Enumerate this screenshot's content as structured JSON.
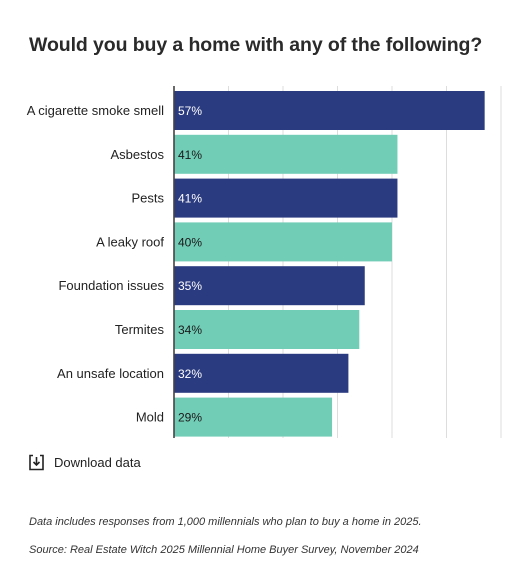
{
  "chart_data": {
    "type": "bar",
    "orientation": "horizontal",
    "title": "Would you buy a home with any of the following?",
    "categories": [
      "A cigarette smoke smell",
      "Asbestos",
      "Pests",
      "A leaky roof",
      "Foundation issues",
      "Termites",
      "An unsafe location",
      "Mold"
    ],
    "values": [
      57,
      41,
      41,
      40,
      35,
      34,
      32,
      29
    ],
    "value_labels": [
      "57%",
      "41%",
      "41%",
      "40%",
      "35%",
      "34%",
      "32%",
      "29%"
    ],
    "xlim": [
      0,
      60
    ],
    "grid": true,
    "bar_colors": [
      "#2b3b80",
      "#72cdb7"
    ],
    "label_colors": [
      "#ffffff",
      "#1a1a1a"
    ],
    "gridline_color": "#dddddd",
    "axis_color": "#444444"
  },
  "download": {
    "label": "Download data",
    "icon": "download-icon"
  },
  "notes": {
    "sample": "Data includes responses from 1,000 millennials who plan to buy a home in 2025.",
    "source": "Source: Real Estate Witch 2025 Millennial Home Buyer Survey, November 2024"
  }
}
